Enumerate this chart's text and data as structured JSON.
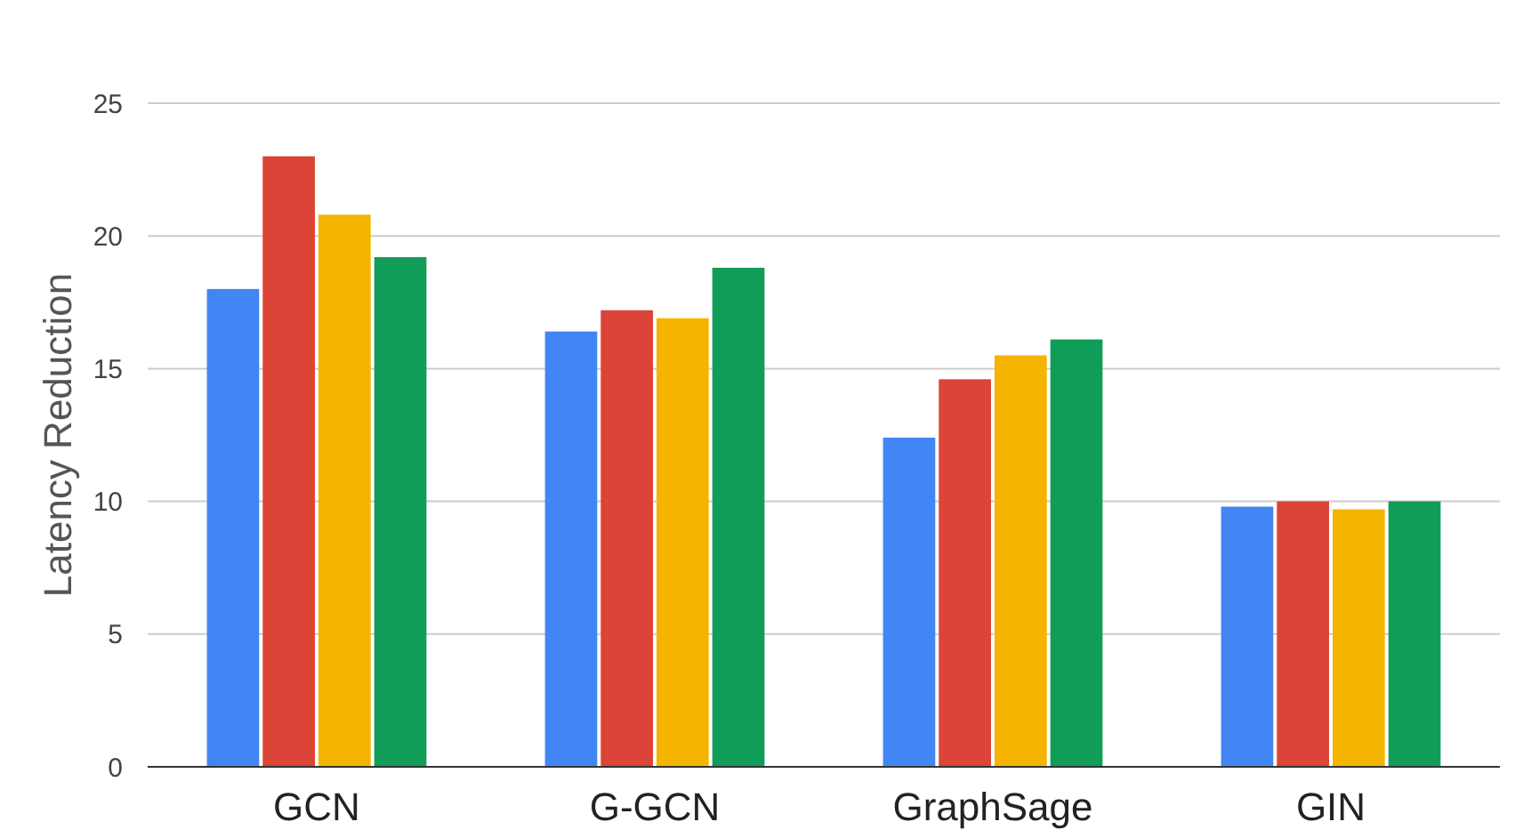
{
  "chart_data": {
    "type": "bar",
    "ylabel": "Latency Reduction",
    "categories": [
      "GCN",
      "G-GCN",
      "GraphSage",
      "GIN"
    ],
    "series": [
      {
        "color": "#4285f4",
        "values": [
          18.0,
          16.4,
          12.4,
          9.8
        ]
      },
      {
        "color": "#db4437",
        "values": [
          23.0,
          17.2,
          14.6,
          10.0
        ]
      },
      {
        "color": "#f4b400",
        "values": [
          20.8,
          16.9,
          15.5,
          9.7
        ]
      },
      {
        "color": "#0f9d58",
        "values": [
          19.2,
          18.8,
          16.1,
          10.0
        ]
      }
    ],
    "ylim": [
      0,
      25
    ],
    "yticks": [
      0,
      5,
      10,
      15,
      20,
      25
    ],
    "grid": "y",
    "legend": false
  }
}
